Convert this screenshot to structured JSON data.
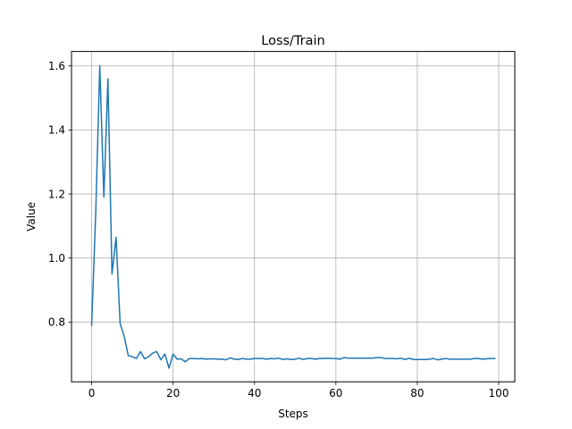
{
  "chart_data": {
    "type": "line",
    "title": "Loss/Train",
    "xlabel": "Steps",
    "ylabel": "Value",
    "xlim": [
      -4.95,
      103.95
    ],
    "ylim": [
      0.6133,
      1.6451
    ],
    "x_ticks": [
      0,
      20,
      40,
      60,
      80,
      100
    ],
    "y_ticks": [
      0.8,
      1.0,
      1.2,
      1.4,
      1.6
    ],
    "x_tick_labels": [
      "0",
      "20",
      "40",
      "60",
      "80",
      "100"
    ],
    "y_tick_labels": [
      "0.8",
      "1.0",
      "1.2",
      "1.4",
      "1.6"
    ],
    "grid": true,
    "legend": "none",
    "colors": {
      "line": "#1f77b4",
      "grid": "#b0b0b0",
      "axes": "#000000"
    },
    "series": [
      {
        "x": [
          0,
          1,
          2,
          3,
          4,
          5,
          6,
          7,
          8,
          9,
          10,
          11,
          12,
          13,
          14,
          15,
          16,
          17,
          18,
          19,
          20,
          21,
          22,
          23,
          24,
          25,
          26,
          27,
          28,
          29,
          30,
          31,
          32,
          33,
          34,
          35,
          36,
          37,
          38,
          39,
          40,
          41,
          42,
          43,
          44,
          45,
          46,
          47,
          48,
          49,
          50,
          51,
          52,
          53,
          54,
          55,
          56,
          57,
          58,
          59,
          60,
          61,
          62,
          63,
          64,
          65,
          66,
          67,
          68,
          69,
          70,
          71,
          72,
          73,
          74,
          75,
          76,
          77,
          78,
          79,
          80,
          81,
          82,
          83,
          84,
          85,
          86,
          87,
          88,
          89,
          90,
          91,
          92,
          93,
          94,
          95,
          96,
          97,
          98,
          99
        ],
        "values": [
          0.79,
          1.14,
          1.6,
          1.19,
          1.56,
          0.95,
          1.065,
          0.795,
          0.755,
          0.695,
          0.692,
          0.686,
          0.708,
          0.685,
          0.692,
          0.703,
          0.708,
          0.682,
          0.7,
          0.656,
          0.7,
          0.684,
          0.685,
          0.676,
          0.686,
          0.686,
          0.685,
          0.686,
          0.684,
          0.685,
          0.685,
          0.684,
          0.684,
          0.682,
          0.688,
          0.684,
          0.683,
          0.686,
          0.684,
          0.684,
          0.686,
          0.686,
          0.686,
          0.684,
          0.686,
          0.685,
          0.687,
          0.683,
          0.685,
          0.683,
          0.684,
          0.687,
          0.683,
          0.686,
          0.686,
          0.684,
          0.686,
          0.686,
          0.687,
          0.686,
          0.686,
          0.684,
          0.689,
          0.687,
          0.687,
          0.687,
          0.687,
          0.687,
          0.687,
          0.687,
          0.689,
          0.689,
          0.686,
          0.686,
          0.686,
          0.685,
          0.687,
          0.683,
          0.687,
          0.683,
          0.683,
          0.683,
          0.683,
          0.684,
          0.686,
          0.682,
          0.684,
          0.686,
          0.684,
          0.684,
          0.684,
          0.684,
          0.684,
          0.684,
          0.686,
          0.686,
          0.684,
          0.685,
          0.686,
          0.686
        ]
      }
    ]
  }
}
